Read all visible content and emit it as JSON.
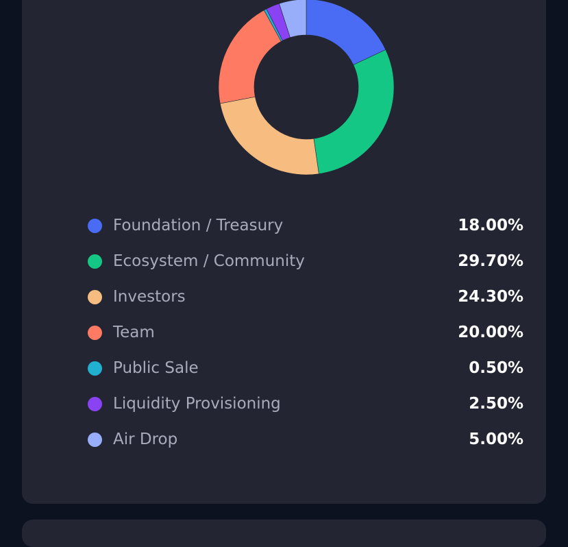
{
  "chart_data": {
    "type": "pie",
    "title": "",
    "categories": [
      "Foundation / Treasury",
      "Ecosystem / Community",
      "Investors",
      "Team",
      "Public Sale",
      "Liquidity Provisioning",
      "Air Drop"
    ],
    "values": [
      18.0,
      29.7,
      24.3,
      20.0,
      0.5,
      2.5,
      5.0
    ],
    "value_labels": [
      "18.00%",
      "29.70%",
      "24.30%",
      "20.00%",
      "0.50%",
      "2.50%",
      "5.00%"
    ],
    "colors": [
      "#4a6cf5",
      "#14c784",
      "#f6bc80",
      "#fe7a63",
      "#21b0cf",
      "#8a43f2",
      "#98aefa"
    ],
    "donut": true,
    "legend": "bottom"
  }
}
